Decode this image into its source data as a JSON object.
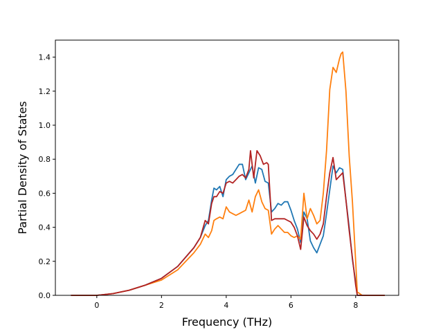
{
  "chart_data": {
    "type": "line",
    "title": "",
    "xlabel": "Frequency (THz)",
    "ylabel": "Partial Density of States",
    "xlim": [
      -1.28,
      9.33
    ],
    "ylim": [
      0.0,
      1.5
    ],
    "xticks": [
      0,
      2,
      4,
      6,
      8
    ],
    "xtick_labels": [
      "0",
      "2",
      "4",
      "6",
      "8"
    ],
    "yticks": [
      0.0,
      0.2,
      0.4,
      0.6,
      0.8,
      1.0,
      1.2,
      1.4
    ],
    "ytick_labels": [
      "0.0",
      "0.2",
      "0.4",
      "0.6",
      "0.8",
      "1.0",
      "1.2",
      "1.4"
    ],
    "grid": false,
    "legend": "none",
    "series": [
      {
        "color": "#1f77b4",
        "x": [
          -0.8,
          0,
          0.5,
          1.0,
          1.5,
          2.0,
          2.5,
          3.0,
          3.2,
          3.35,
          3.45,
          3.55,
          3.62,
          3.7,
          3.8,
          3.9,
          4.0,
          4.1,
          4.2,
          4.3,
          4.4,
          4.5,
          4.6,
          4.7,
          4.8,
          4.9,
          5.0,
          5.1,
          5.2,
          5.3,
          5.4,
          5.5,
          5.6,
          5.7,
          5.8,
          5.9,
          6.0,
          6.1,
          6.2,
          6.3,
          6.4,
          6.5,
          6.6,
          6.7,
          6.8,
          6.9,
          7.0,
          7.1,
          7.2,
          7.3,
          7.4,
          7.5,
          7.6,
          7.7,
          7.8,
          7.9,
          8.0,
          8.05,
          8.2,
          8.9
        ],
        "y": [
          0.0,
          0.0,
          0.01,
          0.03,
          0.06,
          0.1,
          0.17,
          0.28,
          0.34,
          0.41,
          0.44,
          0.56,
          0.63,
          0.62,
          0.64,
          0.58,
          0.68,
          0.7,
          0.71,
          0.74,
          0.77,
          0.77,
          0.68,
          0.72,
          0.76,
          0.66,
          0.75,
          0.74,
          0.67,
          0.66,
          0.49,
          0.51,
          0.54,
          0.53,
          0.55,
          0.55,
          0.5,
          0.44,
          0.39,
          0.31,
          0.49,
          0.45,
          0.32,
          0.28,
          0.25,
          0.3,
          0.35,
          0.48,
          0.62,
          0.76,
          0.72,
          0.75,
          0.74,
          0.56,
          0.4,
          0.21,
          0.08,
          0.0,
          0.0,
          0.0
        ]
      },
      {
        "color": "#ff7f0e",
        "x": [
          -0.8,
          0,
          0.5,
          1.0,
          1.5,
          2.0,
          2.5,
          3.0,
          3.2,
          3.35,
          3.45,
          3.55,
          3.62,
          3.7,
          3.8,
          3.9,
          4.0,
          4.1,
          4.2,
          4.3,
          4.4,
          4.5,
          4.6,
          4.7,
          4.8,
          4.9,
          5.0,
          5.1,
          5.2,
          5.3,
          5.4,
          5.5,
          5.6,
          5.7,
          5.8,
          5.9,
          6.0,
          6.1,
          6.2,
          6.3,
          6.4,
          6.5,
          6.6,
          6.7,
          6.8,
          6.9,
          7.0,
          7.1,
          7.2,
          7.3,
          7.4,
          7.5,
          7.55,
          7.6,
          7.7,
          7.8,
          7.9,
          8.0,
          8.05,
          8.2,
          8.9
        ],
        "y": [
          0.0,
          0.0,
          0.01,
          0.03,
          0.06,
          0.09,
          0.15,
          0.25,
          0.3,
          0.36,
          0.34,
          0.38,
          0.44,
          0.45,
          0.46,
          0.45,
          0.52,
          0.49,
          0.48,
          0.47,
          0.48,
          0.49,
          0.5,
          0.56,
          0.49,
          0.58,
          0.62,
          0.55,
          0.51,
          0.5,
          0.36,
          0.39,
          0.41,
          0.39,
          0.37,
          0.37,
          0.35,
          0.34,
          0.35,
          0.33,
          0.6,
          0.45,
          0.51,
          0.47,
          0.42,
          0.44,
          0.6,
          0.85,
          1.21,
          1.34,
          1.31,
          1.39,
          1.42,
          1.43,
          1.2,
          0.82,
          0.55,
          0.2,
          0.02,
          0.0,
          0.0
        ]
      },
      {
        "color": "#b22222",
        "x": [
          -0.8,
          0,
          0.5,
          1.0,
          1.5,
          2.0,
          2.5,
          3.0,
          3.2,
          3.35,
          3.45,
          3.55,
          3.62,
          3.7,
          3.8,
          3.9,
          4.0,
          4.1,
          4.2,
          4.3,
          4.4,
          4.5,
          4.6,
          4.7,
          4.75,
          4.85,
          4.95,
          5.05,
          5.15,
          5.25,
          5.3,
          5.4,
          5.5,
          5.6,
          5.7,
          5.8,
          5.9,
          6.0,
          6.1,
          6.2,
          6.3,
          6.4,
          6.5,
          6.6,
          6.7,
          6.8,
          6.9,
          7.0,
          7.1,
          7.2,
          7.3,
          7.4,
          7.5,
          7.6,
          7.7,
          7.8,
          7.9,
          8.0,
          8.05,
          8.2,
          8.9
        ],
        "y": [
          0.0,
          0.0,
          0.01,
          0.03,
          0.06,
          0.1,
          0.17,
          0.28,
          0.34,
          0.44,
          0.42,
          0.54,
          0.58,
          0.58,
          0.61,
          0.6,
          0.66,
          0.67,
          0.66,
          0.68,
          0.7,
          0.71,
          0.69,
          0.74,
          0.85,
          0.69,
          0.85,
          0.82,
          0.77,
          0.78,
          0.77,
          0.44,
          0.45,
          0.45,
          0.45,
          0.45,
          0.44,
          0.43,
          0.4,
          0.35,
          0.27,
          0.46,
          0.41,
          0.38,
          0.36,
          0.33,
          0.36,
          0.42,
          0.58,
          0.72,
          0.81,
          0.68,
          0.7,
          0.72,
          0.56,
          0.38,
          0.22,
          0.06,
          0.0,
          0.0,
          0.0
        ]
      }
    ]
  }
}
